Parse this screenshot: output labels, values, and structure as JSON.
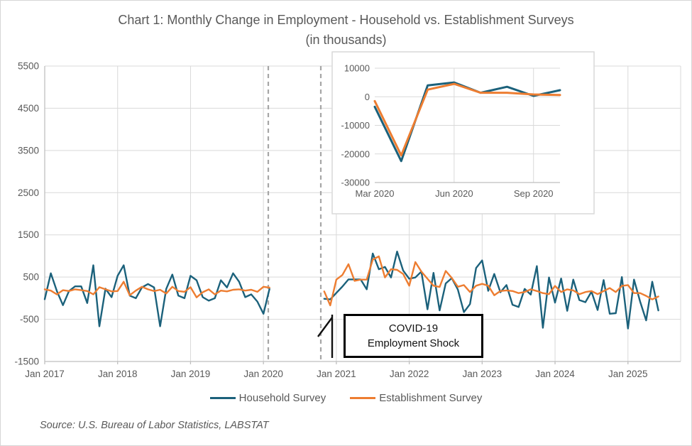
{
  "title": {
    "line1": "Chart 1: Monthly Change in Employment - Household vs. Establishment Surveys",
    "line2": "(in thousands)"
  },
  "source": "Source: U.S. Bureau of Labor Statistics, LABSTAT",
  "annotations": {
    "covid_box": {
      "line1": "COVID-19",
      "line2": "Employment Shock"
    },
    "dashed_lines_note": "Dashed vertical lines bracket the Mar 2020 - Oct 2020 period omitted from the main chart and shown in the inset"
  },
  "colors": {
    "household": "#1B617B",
    "establishment": "#ED7D31",
    "gridline": "#D9D9D9",
    "axis": "#BFBFBF",
    "dashed": "#A6A6A6",
    "text": "#595959",
    "annotation_border": "#000000"
  },
  "chart_data": [
    {
      "id": "main",
      "type": "line",
      "title": "Chart 1: Monthly Change in Employment - Household vs. Establishment Surveys (in thousands)",
      "x_start": "Jan 2017",
      "x_end": "Jun 2025",
      "x_frequency": "monthly",
      "x_tick_labels": [
        "Jan 2017",
        "Jan 2018",
        "Jan 2019",
        "Jan 2020",
        "Jan 2021",
        "Jan 2022",
        "Jan 2023",
        "Jan 2024",
        "Jan 2025"
      ],
      "y_ticks": [
        5500,
        4500,
        3500,
        2500,
        1500,
        500,
        -500,
        -1500
      ],
      "ylim": [
        -1500,
        5500
      ],
      "grid": true,
      "legend_position": "bottom",
      "gap_note": "Mar 2020 through Oct 2020 plotted as a gap (values shown in inset)",
      "series": [
        {
          "name": "Household Survey",
          "color": "#1B617B",
          "values": [
            -25,
            590,
            170,
            -165,
            170,
            280,
            280,
            -115,
            780,
            -665,
            225,
            25,
            530,
            780,
            60,
            0,
            255,
            335,
            255,
            -665,
            220,
            560,
            60,
            0,
            530,
            425,
            25,
            -60,
            0,
            425,
            255,
            590,
            390,
            25,
            90,
            -80,
            -370,
            220,
            null,
            null,
            null,
            null,
            null,
            null,
            null,
            null,
            -15,
            -30,
            125,
            275,
            445,
            445,
            445,
            210,
            1060,
            685,
            740,
            490,
            1105,
            655,
            460,
            490,
            630,
            -265,
            600,
            -290,
            350,
            475,
            205,
            -330,
            -140,
            715,
            895,
            175,
            575,
            140,
            310,
            -155,
            -210,
            220,
            85,
            760,
            -700,
            490,
            -105,
            465,
            -300,
            440,
            -45,
            -95,
            155,
            -280,
            430,
            -370,
            -355,
            500,
            -720,
            440,
            -80,
            -525,
            390,
            -290
          ]
        },
        {
          "name": "Establishment Survey",
          "color": "#ED7D31",
          "values": [
            210,
            180,
            90,
            190,
            170,
            210,
            190,
            170,
            90,
            260,
            210,
            160,
            170,
            390,
            70,
            180,
            270,
            210,
            170,
            200,
            110,
            270,
            170,
            150,
            260,
            20,
            140,
            210,
            90,
            180,
            160,
            200,
            210,
            180,
            200,
            150,
            270,
            250,
            null,
            null,
            null,
            null,
            null,
            null,
            null,
            null,
            160,
            -170,
            440,
            550,
            805,
            410,
            440,
            440,
            915,
            990,
            490,
            685,
            670,
            575,
            295,
            855,
            630,
            460,
            295,
            265,
            645,
            480,
            270,
            310,
            145,
            295,
            340,
            295,
            70,
            170,
            185,
            170,
            120,
            145,
            210,
            170,
            120,
            95,
            290,
            145,
            210,
            185,
            95,
            145,
            170,
            95,
            170,
            240,
            145,
            290,
            310,
            120,
            120,
            55,
            -30,
            40
          ]
        }
      ]
    },
    {
      "id": "inset",
      "type": "line",
      "x_tick_labels": [
        "Mar 2020",
        "Jun 2020",
        "Sep 2020"
      ],
      "categories": [
        "Mar 2020",
        "Apr 2020",
        "May 2020",
        "Jun 2020",
        "Jul 2020",
        "Aug 2020",
        "Sep 2020",
        "Oct 2020"
      ],
      "y_ticks": [
        10000,
        0,
        -10000,
        -20000,
        -30000
      ],
      "ylim": [
        -30000,
        10000
      ],
      "grid": true,
      "series": [
        {
          "name": "Household Survey",
          "color": "#1B617B",
          "values": [
            -3500,
            -22500,
            4000,
            5000,
            1400,
            3500,
            300,
            2300
          ]
        },
        {
          "name": "Establishment Survey",
          "color": "#ED7D31",
          "values": [
            -1500,
            -20500,
            2500,
            4500,
            1400,
            1400,
            800,
            600
          ]
        }
      ]
    }
  ]
}
